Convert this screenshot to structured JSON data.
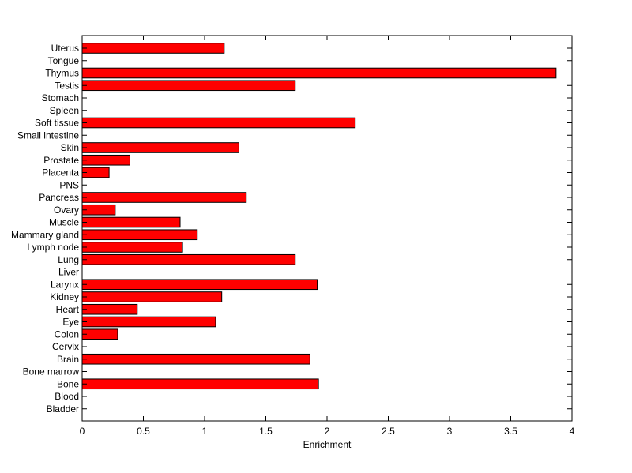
{
  "chart_data": {
    "type": "bar",
    "orientation": "horizontal",
    "title": "",
    "xlabel": "Enrichment",
    "ylabel": "",
    "xlim": [
      0,
      4
    ],
    "xticks": [
      "0",
      "0.5",
      "1",
      "1.5",
      "2",
      "2.5",
      "3",
      "3.5",
      "4"
    ],
    "grid": false,
    "bar_color": "#ff0000",
    "bar_edge_color": "#000000",
    "categories": [
      "Uterus",
      "Tongue",
      "Thymus",
      "Testis",
      "Stomach",
      "Spleen",
      "Soft tissue",
      "Small intestine",
      "Skin",
      "Prostate",
      "Placenta",
      "PNS",
      "Pancreas",
      "Ovary",
      "Muscle",
      "Mammary gland",
      "Lymph node",
      "Lung",
      "Liver",
      "Larynx",
      "Kidney",
      "Heart",
      "Eye",
      "Colon",
      "Cervix",
      "Brain",
      "Bone marrow",
      "Bone",
      "Blood",
      "Bladder"
    ],
    "values": [
      1.16,
      0,
      3.87,
      1.74,
      0,
      0,
      2.23,
      0,
      1.28,
      0.39,
      0.22,
      0,
      1.34,
      0.27,
      0.8,
      0.94,
      0.82,
      1.74,
      0,
      1.92,
      1.14,
      0.45,
      1.09,
      0.29,
      0,
      1.86,
      0,
      1.93,
      0,
      0
    ]
  }
}
